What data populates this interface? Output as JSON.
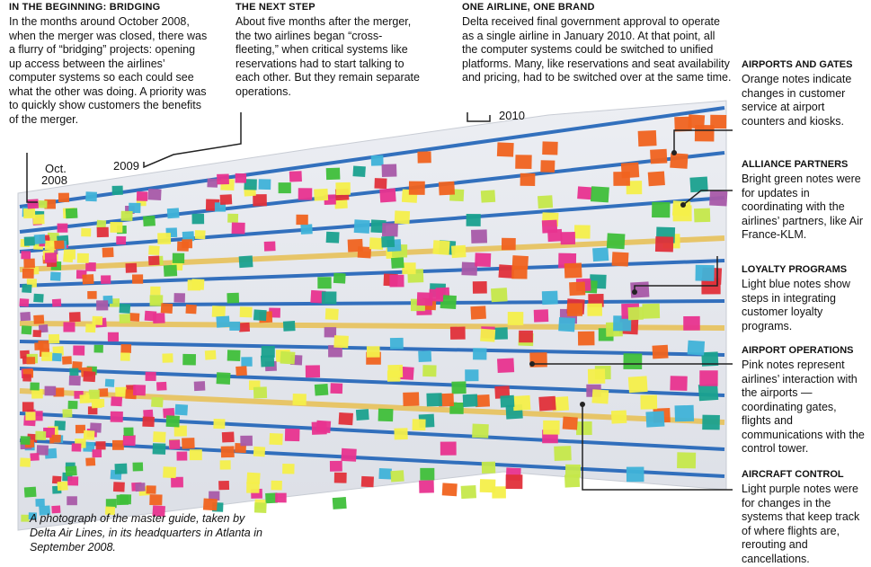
{
  "callouts": [
    {
      "heading": "IN THE BEGINNING: BRIDGING",
      "text": "In the months around October 2008, when the merger was closed, there was a flurry of “bridging” projects: opening up access between the airlines’ computer systems so each could see what the other was doing. A priority was to quickly show customers the benefits of the merger."
    },
    {
      "heading": "THE NEXT STEP",
      "text": "About five months after the merger, the two airlines began “cross-fleeting,” when critical systems like reservations had to start talking to each other. But they remain separate operations."
    },
    {
      "heading": "ONE AIRLINE, ONE BRAND",
      "text": "Delta received final government approval to operate as a single airline in January 2010. At that point, all the computer systems could be switched to unified platforms. Many, like reservations and seat availability and pricing, had to be switched over at the same time."
    }
  ],
  "legend": [
    {
      "heading": "AIRPORTS AND GATES",
      "text": "Orange notes indicate changes in customer service at airport counters and kiosks."
    },
    {
      "heading": "ALLIANCE PARTNERS",
      "text": "Bright green notes were for updates in coordinating with the airlines’ partners, like Air France-KLM."
    },
    {
      "heading": "LOYALTY PROGRAMS",
      "text": "Light blue notes show steps in integrating customer loyalty programs."
    },
    {
      "heading": "AIRPORT OPERATIONS",
      "text": "Pink notes represent airlines’ interaction with the airports — coordinating gates, flights and communications with the control tower."
    },
    {
      "heading": "AIRCRAFT CONTROL",
      "text": "Light purple notes were for changes in the systems that keep track of where flights are, rerouting and cancellations."
    }
  ],
  "timeline_labels": {
    "oct": "Oct.",
    "y2008": "2008",
    "y2009": "2009",
    "y2010": "2010"
  },
  "caption": "A photograph of the master guide, taken by Delta Air Lines, in its headquarters in Atlanta in September 2008.",
  "colors": {
    "blue_tape": "#1f63b8",
    "yellow_tape": "#e8c25a",
    "wall": "#e6e8ee",
    "orange": "#f0631f",
    "green": "#3fbf3a",
    "lightblue": "#3fb2d8",
    "pink": "#e8338f",
    "purple": "#a85aa8",
    "yellow": "#f4ef4a",
    "red": "#e0303a",
    "teal": "#1aa18e",
    "lime": "#c5e84a"
  }
}
